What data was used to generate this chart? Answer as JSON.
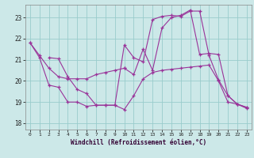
{
  "xlabel": "Windchill (Refroidissement éolien,°C)",
  "bg_color": "#cce8e8",
  "line_color": "#993399",
  "grid_color": "#99cccc",
  "xlim": [
    -0.5,
    23.5
  ],
  "ylim": [
    17.7,
    23.6
  ],
  "xticks": [
    0,
    1,
    2,
    3,
    4,
    5,
    6,
    7,
    8,
    9,
    10,
    11,
    12,
    13,
    14,
    15,
    16,
    17,
    18,
    19,
    20,
    21,
    22,
    23
  ],
  "yticks": [
    18,
    19,
    20,
    21,
    22,
    23
  ],
  "series": [
    {
      "x": [
        0,
        1,
        2,
        3,
        4,
        5,
        6,
        7,
        8,
        9,
        10
      ],
      "y": [
        21.8,
        21.2,
        20.6,
        20.2,
        20.1,
        20.1,
        20.1,
        20.3,
        20.4,
        20.5,
        20.6
      ]
    },
    {
      "x": [
        0,
        1,
        2,
        3,
        4,
        5,
        6,
        7,
        8,
        9,
        10,
        11,
        12,
        13,
        14,
        15,
        16,
        17,
        18,
        19,
        20,
        21,
        22,
        23
      ],
      "y": [
        21.8,
        21.1,
        19.8,
        19.7,
        19.0,
        19.0,
        18.8,
        18.85,
        18.85,
        18.85,
        18.65,
        19.3,
        20.1,
        20.4,
        20.5,
        20.55,
        20.6,
        20.65,
        20.7,
        20.75,
        20.0,
        19.0,
        18.9,
        18.7
      ]
    },
    {
      "x": [
        2,
        3,
        4,
        5,
        6,
        7,
        8,
        9,
        10,
        11,
        12,
        13,
        14,
        15,
        16,
        17,
        18,
        19,
        20,
        21,
        22,
        23
      ],
      "y": [
        21.1,
        21.05,
        20.2,
        19.6,
        19.4,
        18.85,
        18.85,
        18.85,
        21.7,
        21.1,
        20.9,
        22.9,
        23.05,
        23.1,
        23.05,
        23.3,
        23.3,
        21.2,
        20.05,
        19.3,
        18.9,
        18.75
      ]
    },
    {
      "x": [
        10,
        11,
        12,
        13,
        14,
        15,
        16,
        17,
        18,
        19,
        20,
        21,
        22,
        23
      ],
      "y": [
        20.6,
        20.3,
        21.5,
        20.5,
        22.5,
        23.0,
        23.1,
        23.35,
        21.25,
        21.3,
        21.25,
        19.3,
        18.9,
        18.75
      ]
    }
  ]
}
